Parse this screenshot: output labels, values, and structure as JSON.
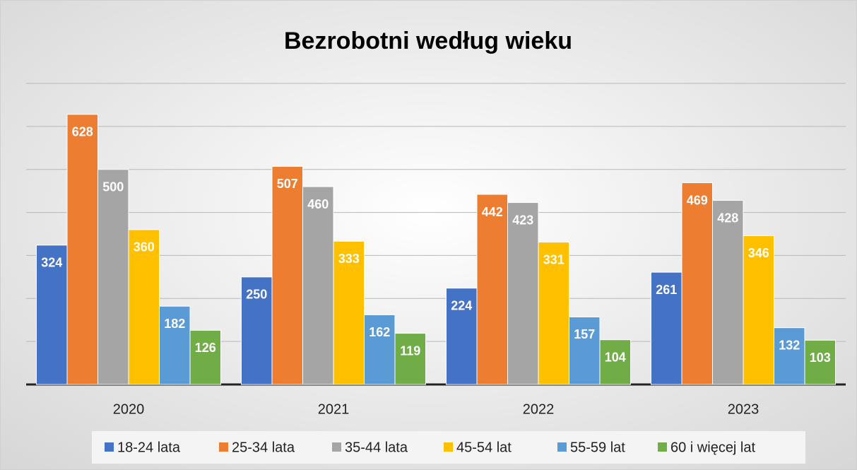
{
  "chart_data": {
    "type": "bar",
    "title": "Bezrobotni według wieku",
    "categories": [
      "2020",
      "2021",
      "2022",
      "2023"
    ],
    "series": [
      {
        "name": "18-24 lata",
        "color": "#4472c4",
        "values": [
          324,
          250,
          224,
          261
        ]
      },
      {
        "name": "25-34 lata",
        "color": "#ed7d31",
        "values": [
          628,
          507,
          442,
          469
        ]
      },
      {
        "name": "35-44 lata",
        "color": "#a5a5a5",
        "values": [
          500,
          460,
          423,
          428
        ]
      },
      {
        "name": "45-54 lat",
        "color": "#ffc000",
        "values": [
          360,
          333,
          331,
          346
        ]
      },
      {
        "name": "55-59 lat",
        "color": "#5b9bd5",
        "values": [
          182,
          162,
          157,
          132
        ]
      },
      {
        "name": "60 i więcej lat",
        "color": "#70ad47",
        "values": [
          126,
          119,
          104,
          103
        ]
      }
    ],
    "ylim": [
      0,
      700
    ],
    "yticks": [
      0,
      100,
      200,
      300,
      400,
      500,
      600,
      700
    ],
    "grid": true,
    "legend": "bottom"
  }
}
